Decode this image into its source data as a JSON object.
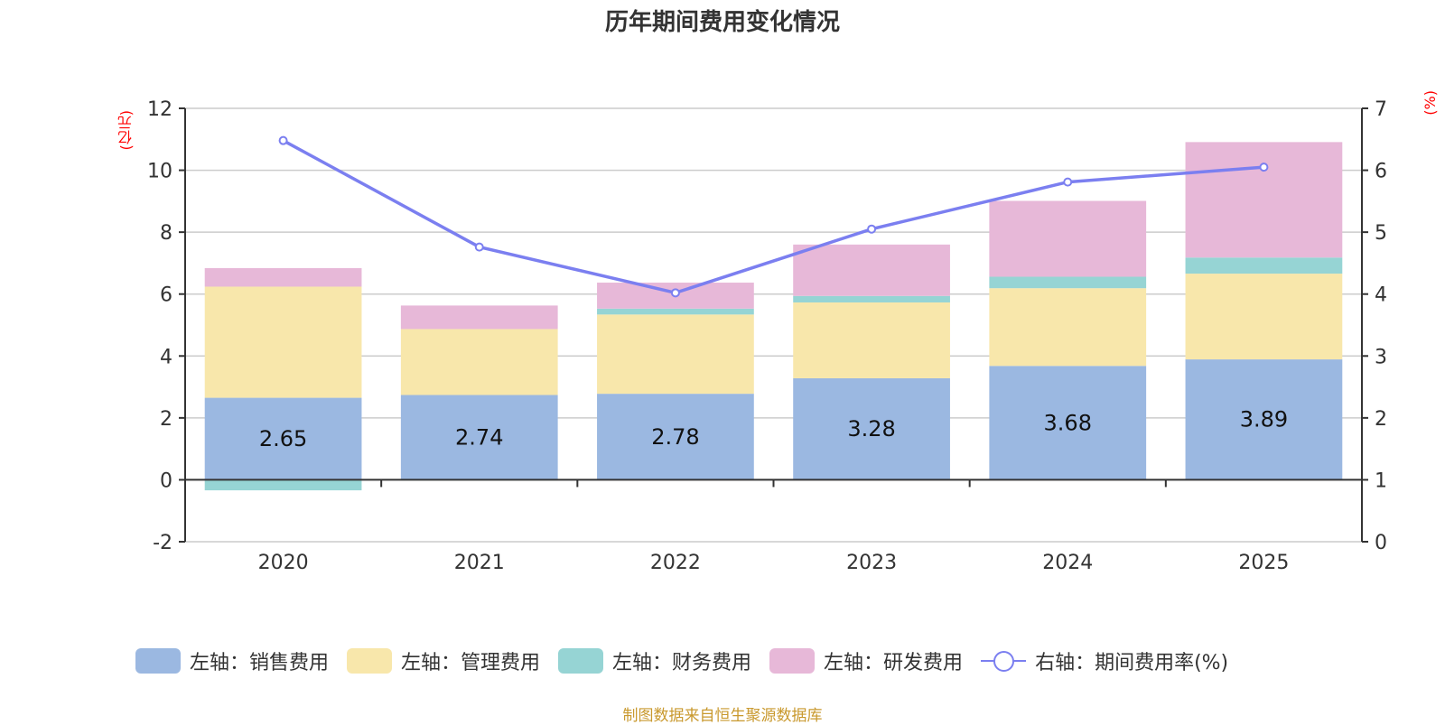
{
  "chart_data": {
    "type": "bar",
    "stacked": true,
    "title": "历年期间费用变化情况",
    "categories": [
      "2020",
      "2021",
      "2022",
      "2023",
      "2024",
      "2025"
    ],
    "left_axis": {
      "unit_label": "(亿元)",
      "ylim": [
        -2,
        12
      ],
      "ticks": [
        -2,
        0,
        2,
        4,
        6,
        8,
        10,
        12
      ]
    },
    "right_axis": {
      "unit_label": "(%)",
      "ylim": [
        0,
        7
      ],
      "ticks": [
        0,
        1,
        2,
        3,
        4,
        5,
        6,
        7
      ]
    },
    "grid": true,
    "series": [
      {
        "name": "左轴：销售费用",
        "axis": "left",
        "type": "bar",
        "color": "#9bb8e1",
        "values": [
          2.65,
          2.74,
          2.78,
          3.28,
          3.68,
          3.89
        ],
        "data_labels": [
          "2.65",
          "2.74",
          "2.78",
          "3.28",
          "3.68",
          "3.89"
        ]
      },
      {
        "name": "左轴：管理费用",
        "axis": "left",
        "type": "bar",
        "color": "#f8e7ab",
        "values": [
          3.59,
          2.13,
          2.56,
          2.45,
          2.51,
          2.77
        ]
      },
      {
        "name": "左轴：财务费用",
        "axis": "left",
        "type": "bar",
        "color": "#96d4d4",
        "values": [
          -0.34,
          -0.02,
          0.19,
          0.21,
          0.37,
          0.52
        ]
      },
      {
        "name": "左轴：研发费用",
        "axis": "left",
        "type": "bar",
        "color": "#e7b8d8",
        "values": [
          0.6,
          0.76,
          0.84,
          1.66,
          2.45,
          3.73
        ]
      },
      {
        "name": "右轴：期间费用率(%)",
        "axis": "right",
        "type": "line",
        "color": "#7b7ff0",
        "values": [
          6.48,
          4.76,
          4.02,
          5.05,
          5.81,
          6.05
        ]
      }
    ],
    "legend_position": "bottom",
    "source": "制图数据来自恒生聚源数据库"
  }
}
